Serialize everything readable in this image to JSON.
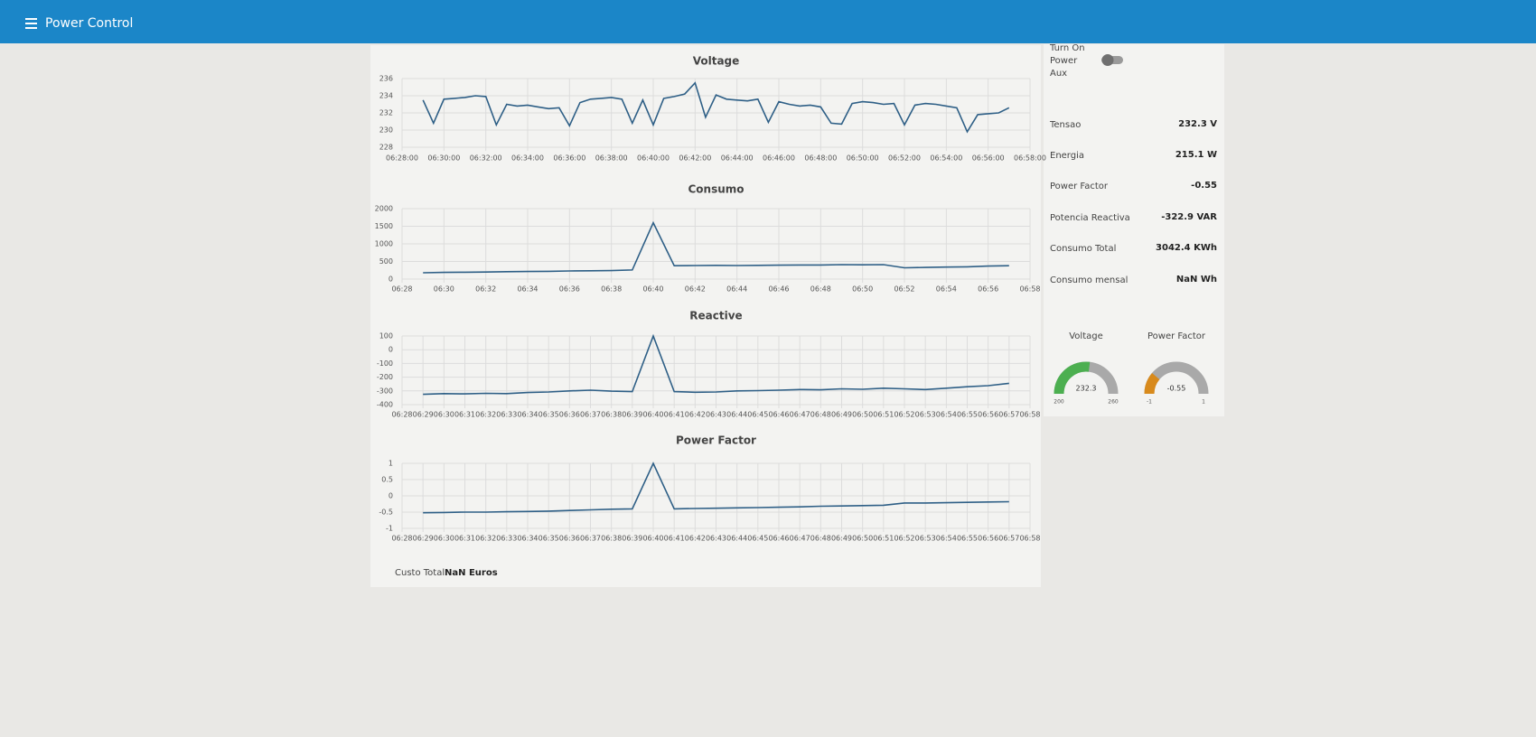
{
  "header": {
    "title": "Power Control"
  },
  "chart_data": [
    {
      "type": "line",
      "title": "Voltage",
      "color": "#2e5f86",
      "grid": true,
      "xlim": [
        "06:28:00",
        "06:58:00"
      ],
      "xticks": [
        "06:28:00",
        "06:30:00",
        "06:32:00",
        "06:34:00",
        "06:36:00",
        "06:38:00",
        "06:40:00",
        "06:42:00",
        "06:44:00",
        "06:46:00",
        "06:48:00",
        "06:50:00",
        "06:52:00",
        "06:54:00",
        "06:56:00",
        "06:58:00"
      ],
      "ylim": [
        228,
        236
      ],
      "yticks": [
        228,
        230,
        232,
        234,
        236
      ],
      "x": [
        "06:29:00",
        "06:29:30",
        "06:30:00",
        "06:30:30",
        "06:31:00",
        "06:31:30",
        "06:32:00",
        "06:32:30",
        "06:33:00",
        "06:33:30",
        "06:34:00",
        "06:34:30",
        "06:35:00",
        "06:35:30",
        "06:36:00",
        "06:36:30",
        "06:37:00",
        "06:37:30",
        "06:38:00",
        "06:38:30",
        "06:39:00",
        "06:39:30",
        "06:40:00",
        "06:40:30",
        "06:41:00",
        "06:41:30",
        "06:42:00",
        "06:42:30",
        "06:43:00",
        "06:43:30",
        "06:44:00",
        "06:44:30",
        "06:45:00",
        "06:45:30",
        "06:46:00",
        "06:46:30",
        "06:47:00",
        "06:47:30",
        "06:48:00",
        "06:48:30",
        "06:49:00",
        "06:49:30",
        "06:50:00",
        "06:50:30",
        "06:51:00",
        "06:51:30",
        "06:52:00",
        "06:52:30",
        "06:53:00",
        "06:53:30",
        "06:54:00",
        "06:54:30",
        "06:55:00",
        "06:55:30",
        "06:56:00",
        "06:56:30",
        "06:57:00"
      ],
      "values": [
        233.5,
        230.8,
        233.6,
        233.7,
        233.8,
        234.0,
        233.9,
        230.6,
        233.0,
        232.8,
        232.9,
        232.7,
        232.5,
        232.6,
        230.5,
        233.2,
        233.6,
        233.7,
        233.8,
        233.6,
        230.8,
        233.5,
        230.6,
        233.7,
        233.9,
        234.2,
        235.5,
        231.5,
        234.1,
        233.6,
        233.5,
        233.4,
        233.6,
        230.9,
        233.3,
        233.0,
        232.8,
        232.9,
        232.7,
        230.8,
        230.7,
        233.1,
        233.3,
        233.2,
        233.0,
        233.1,
        230.6,
        232.9,
        233.1,
        233.0,
        232.8,
        232.6,
        229.8,
        231.8,
        231.9,
        232.0,
        232.6
      ]
    },
    {
      "type": "line",
      "title": "Consumo",
      "color": "#2e5f86",
      "grid": true,
      "xlim": [
        "06:28",
        "06:58"
      ],
      "xticks": [
        "06:28",
        "06:30",
        "06:32",
        "06:34",
        "06:36",
        "06:38",
        "06:40",
        "06:42",
        "06:44",
        "06:46",
        "06:48",
        "06:50",
        "06:52",
        "06:54",
        "06:56",
        "06:58"
      ],
      "ylim": [
        0,
        2000
      ],
      "yticks": [
        0,
        500,
        1000,
        1500,
        2000
      ],
      "x": [
        "06:29",
        "06:30",
        "06:31",
        "06:32",
        "06:33",
        "06:34",
        "06:35",
        "06:36",
        "06:37",
        "06:38",
        "06:39",
        "06:40",
        "06:41",
        "06:42",
        "06:43",
        "06:44",
        "06:45",
        "06:46",
        "06:47",
        "06:48",
        "06:49",
        "06:50",
        "06:51",
        "06:52",
        "06:53",
        "06:54",
        "06:55",
        "06:56",
        "06:57"
      ],
      "values": [
        180,
        190,
        195,
        200,
        210,
        215,
        220,
        230,
        235,
        240,
        260,
        1600,
        380,
        385,
        390,
        385,
        390,
        395,
        400,
        400,
        410,
        405,
        410,
        320,
        330,
        340,
        350,
        370,
        380
      ]
    },
    {
      "type": "line",
      "title": "Reactive",
      "color": "#2e5f86",
      "grid": true,
      "xlim": [
        "06:28",
        "06:58"
      ],
      "xticks": [
        "06:28",
        "06:29",
        "06:30",
        "06:31",
        "06:32",
        "06:33",
        "06:34",
        "06:35",
        "06:36",
        "06:37",
        "06:38",
        "06:39",
        "06:40",
        "06:41",
        "06:42",
        "06:43",
        "06:44",
        "06:45",
        "06:46",
        "06:47",
        "06:48",
        "06:49",
        "06:50",
        "06:51",
        "06:52",
        "06:53",
        "06:54",
        "06:55",
        "06:56",
        "06:57",
        "06:58"
      ],
      "ylim": [
        -400,
        100
      ],
      "yticks": [
        100,
        0,
        -100,
        -200,
        -300,
        -400
      ],
      "x": [
        "06:29",
        "06:30",
        "06:31",
        "06:32",
        "06:33",
        "06:34",
        "06:35",
        "06:36",
        "06:37",
        "06:38",
        "06:39",
        "06:40",
        "06:41",
        "06:42",
        "06:43",
        "06:44",
        "06:45",
        "06:46",
        "06:47",
        "06:48",
        "06:49",
        "06:50",
        "06:51",
        "06:52",
        "06:53",
        "06:54",
        "06:55",
        "06:56",
        "06:57"
      ],
      "values": [
        -325,
        -320,
        -322,
        -318,
        -320,
        -312,
        -308,
        -300,
        -295,
        -302,
        -305,
        100,
        -305,
        -310,
        -308,
        -300,
        -298,
        -295,
        -290,
        -292,
        -285,
        -288,
        -280,
        -285,
        -290,
        -280,
        -270,
        -262,
        -245
      ]
    },
    {
      "type": "line",
      "title": "Power Factor",
      "color": "#2e5f86",
      "grid": true,
      "xlim": [
        "06:28",
        "06:58"
      ],
      "xticks": [
        "06:28",
        "06:29",
        "06:30",
        "06:31",
        "06:32",
        "06:33",
        "06:34",
        "06:35",
        "06:36",
        "06:37",
        "06:38",
        "06:39",
        "06:40",
        "06:41",
        "06:42",
        "06:43",
        "06:44",
        "06:45",
        "06:46",
        "06:47",
        "06:48",
        "06:49",
        "06:50",
        "06:51",
        "06:52",
        "06:53",
        "06:54",
        "06:55",
        "06:56",
        "06:57",
        "06:58"
      ],
      "ylim": [
        -1,
        1
      ],
      "yticks": [
        1,
        0.5,
        0,
        -0.5,
        -1
      ],
      "x": [
        "06:29",
        "06:30",
        "06:31",
        "06:32",
        "06:33",
        "06:34",
        "06:35",
        "06:36",
        "06:37",
        "06:38",
        "06:39",
        "06:40",
        "06:41",
        "06:42",
        "06:43",
        "06:44",
        "06:45",
        "06:46",
        "06:47",
        "06:48",
        "06:49",
        "06:50",
        "06:51",
        "06:52",
        "06:53",
        "06:54",
        "06:55",
        "06:56",
        "06:57"
      ],
      "values": [
        -0.52,
        -0.51,
        -0.5,
        -0.5,
        -0.49,
        -0.48,
        -0.47,
        -0.45,
        -0.43,
        -0.41,
        -0.4,
        1,
        -0.4,
        -0.39,
        -0.38,
        -0.37,
        -0.36,
        -0.35,
        -0.34,
        -0.32,
        -0.31,
        -0.3,
        -0.29,
        -0.22,
        -0.22,
        -0.21,
        -0.2,
        -0.19,
        -0.18
      ]
    }
  ],
  "toggle": {
    "label": "Turn On Power Aux"
  },
  "readings": [
    {
      "label": "Tensao",
      "value": "232.3 V"
    },
    {
      "label": "Energia",
      "value": "215.1 W"
    },
    {
      "label": "Power Factor",
      "value": "-0.55"
    },
    {
      "label": "Potencia Reactiva",
      "value": "-322.9 VAR"
    },
    {
      "label": "Consumo Total",
      "value": "3042.4 KWh"
    },
    {
      "label": "Consumo mensal",
      "value": "NaN Wh"
    }
  ],
  "gauges": [
    {
      "title": "Voltage",
      "value": 232.3,
      "min": 200,
      "max": 260,
      "color": "#4caf50"
    },
    {
      "title": "Power Factor",
      "value": -0.55,
      "min": -1,
      "max": 1,
      "color": "#d88a1c"
    }
  ],
  "footer": {
    "label": "Custo Total",
    "value": "NaN Euros"
  }
}
